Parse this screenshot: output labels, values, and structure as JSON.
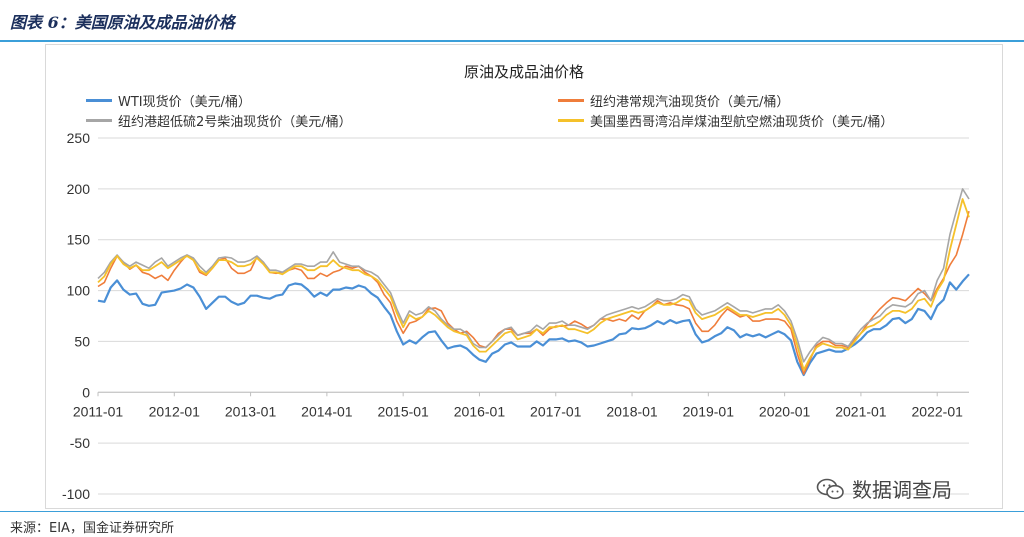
{
  "figure_title": "图表 6：美国原油及成品油价格",
  "source": "来源：EIA，国金证券研究所",
  "watermark": "数据调查局",
  "colors": {
    "wti": "#4a8fd6",
    "gasoline": "#ef7d3b",
    "diesel": "#a6a6a6",
    "jet": "#f5c12a",
    "rule": "#3b9fd9"
  },
  "chart_data": {
    "type": "line",
    "title": "原油及成品油价格",
    "xlabel": "",
    "ylabel": "",
    "ylim": [
      -100,
      250
    ],
    "xlim": [
      "2011-01",
      "2022-06"
    ],
    "yticks": [
      250,
      200,
      150,
      100,
      50,
      0,
      -50,
      -100
    ],
    "xticks": [
      "2011-01",
      "2012-01",
      "2013-01",
      "2014-01",
      "2015-01",
      "2016-01",
      "2017-01",
      "2018-01",
      "2019-01",
      "2020-01",
      "2021-01",
      "2022-01"
    ],
    "grid": true,
    "legend_position": "top",
    "x": [
      "2011-01",
      "2011-02",
      "2011-03",
      "2011-04",
      "2011-05",
      "2011-06",
      "2011-07",
      "2011-08",
      "2011-09",
      "2011-10",
      "2011-11",
      "2011-12",
      "2012-01",
      "2012-02",
      "2012-03",
      "2012-04",
      "2012-05",
      "2012-06",
      "2012-07",
      "2012-08",
      "2012-09",
      "2012-10",
      "2012-11",
      "2012-12",
      "2013-01",
      "2013-02",
      "2013-03",
      "2013-04",
      "2013-05",
      "2013-06",
      "2013-07",
      "2013-08",
      "2013-09",
      "2013-10",
      "2013-11",
      "2013-12",
      "2014-01",
      "2014-02",
      "2014-03",
      "2014-04",
      "2014-05",
      "2014-06",
      "2014-07",
      "2014-08",
      "2014-09",
      "2014-10",
      "2014-11",
      "2014-12",
      "2015-01",
      "2015-02",
      "2015-03",
      "2015-04",
      "2015-05",
      "2015-06",
      "2015-07",
      "2015-08",
      "2015-09",
      "2015-10",
      "2015-11",
      "2015-12",
      "2016-01",
      "2016-02",
      "2016-03",
      "2016-04",
      "2016-05",
      "2016-06",
      "2016-07",
      "2016-08",
      "2016-09",
      "2016-10",
      "2016-11",
      "2016-12",
      "2017-01",
      "2017-02",
      "2017-03",
      "2017-04",
      "2017-05",
      "2017-06",
      "2017-07",
      "2017-08",
      "2017-09",
      "2017-10",
      "2017-11",
      "2017-12",
      "2018-01",
      "2018-02",
      "2018-03",
      "2018-04",
      "2018-05",
      "2018-06",
      "2018-07",
      "2018-08",
      "2018-09",
      "2018-10",
      "2018-11",
      "2018-12",
      "2019-01",
      "2019-02",
      "2019-03",
      "2019-04",
      "2019-05",
      "2019-06",
      "2019-07",
      "2019-08",
      "2019-09",
      "2019-10",
      "2019-11",
      "2019-12",
      "2020-01",
      "2020-02",
      "2020-03",
      "2020-04",
      "2020-05",
      "2020-06",
      "2020-07",
      "2020-08",
      "2020-09",
      "2020-10",
      "2020-11",
      "2020-12",
      "2021-01",
      "2021-02",
      "2021-03",
      "2021-04",
      "2021-05",
      "2021-06",
      "2021-07",
      "2021-08",
      "2021-09",
      "2021-10",
      "2021-11",
      "2021-12",
      "2022-01",
      "2022-02",
      "2022-03",
      "2022-04",
      "2022-05",
      "2022-06"
    ],
    "series": [
      {
        "key": "wti",
        "name": "WTI现货价（美元/桶）",
        "values": [
          90,
          89,
          103,
          110,
          101,
          96,
          97,
          87,
          85,
          86,
          98,
          99,
          100,
          102,
          106,
          103,
          94,
          82,
          88,
          94,
          94,
          89,
          86,
          88,
          95,
          95,
          93,
          92,
          95,
          96,
          105,
          107,
          106,
          101,
          94,
          98,
          95,
          101,
          101,
          103,
          102,
          105,
          103,
          97,
          93,
          84,
          76,
          60,
          47,
          51,
          48,
          54,
          59,
          60,
          51,
          43,
          45,
          46,
          43,
          37,
          32,
          30,
          38,
          41,
          47,
          49,
          45,
          45,
          45,
          50,
          46,
          52,
          52,
          53,
          50,
          51,
          49,
          45,
          46,
          48,
          50,
          52,
          57,
          58,
          63,
          62,
          63,
          66,
          70,
          67,
          71,
          68,
          70,
          71,
          57,
          49,
          51,
          55,
          58,
          64,
          61,
          54,
          57,
          55,
          57,
          54,
          57,
          60,
          57,
          51,
          30,
          17,
          29,
          38,
          40,
          42,
          40,
          40,
          43,
          47,
          52,
          59,
          62,
          62,
          66,
          72,
          73,
          68,
          72,
          82,
          80,
          72,
          85,
          91,
          108,
          101,
          109,
          116
        ]
      },
      {
        "key": "gasoline",
        "name": "纽约港常规汽油现货价（美元/桶）",
        "values": [
          104,
          108,
          122,
          134,
          128,
          121,
          125,
          118,
          116,
          112,
          115,
          110,
          120,
          128,
          135,
          130,
          118,
          115,
          122,
          130,
          132,
          122,
          117,
          117,
          120,
          133,
          128,
          118,
          117,
          118,
          120,
          122,
          120,
          112,
          112,
          117,
          114,
          118,
          120,
          124,
          122,
          124,
          118,
          114,
          108,
          96,
          88,
          70,
          58,
          68,
          70,
          74,
          82,
          83,
          80,
          68,
          62,
          58,
          60,
          54,
          46,
          44,
          50,
          58,
          62,
          62,
          56,
          58,
          58,
          62,
          56,
          62,
          65,
          65,
          66,
          70,
          67,
          63,
          66,
          72,
          72,
          70,
          72,
          70,
          76,
          72,
          80,
          84,
          90,
          86,
          88,
          86,
          85,
          82,
          68,
          60,
          60,
          66,
          75,
          82,
          78,
          74,
          76,
          70,
          70,
          72,
          72,
          72,
          70,
          62,
          38,
          18,
          32,
          46,
          50,
          50,
          46,
          46,
          44,
          52,
          58,
          67,
          75,
          82,
          88,
          93,
          92,
          90,
          96,
          102,
          97,
          90,
          102,
          112,
          125,
          135,
          155,
          178
        ]
      },
      {
        "key": "diesel",
        "name": "纽约港超低硫2号柴油现货价（美元/桶）",
        "values": [
          112,
          118,
          128,
          135,
          128,
          124,
          128,
          125,
          122,
          128,
          132,
          124,
          128,
          132,
          135,
          132,
          124,
          118,
          124,
          132,
          133,
          132,
          128,
          128,
          130,
          134,
          128,
          120,
          120,
          118,
          122,
          126,
          126,
          124,
          124,
          128,
          128,
          138,
          128,
          126,
          124,
          124,
          120,
          118,
          114,
          106,
          98,
          82,
          68,
          80,
          76,
          78,
          84,
          80,
          72,
          66,
          62,
          62,
          58,
          48,
          44,
          44,
          50,
          56,
          62,
          64,
          56,
          58,
          60,
          66,
          62,
          68,
          68,
          70,
          66,
          66,
          64,
          62,
          66,
          72,
          76,
          78,
          80,
          82,
          84,
          82,
          84,
          88,
          92,
          90,
          90,
          92,
          96,
          94,
          82,
          76,
          78,
          80,
          84,
          88,
          84,
          80,
          80,
          78,
          80,
          82,
          82,
          86,
          80,
          70,
          52,
          30,
          40,
          48,
          54,
          52,
          48,
          48,
          45,
          54,
          62,
          68,
          72,
          75,
          82,
          86,
          85,
          84,
          88,
          97,
          100,
          90,
          110,
          122,
          155,
          178,
          200,
          190
        ]
      },
      {
        "key": "jet",
        "name": "美国墨西哥湾沿岸煤油型航空燃油现货价（美元/桶）",
        "values": [
          108,
          114,
          126,
          134,
          126,
          122,
          125,
          120,
          120,
          124,
          128,
          122,
          126,
          130,
          134,
          130,
          120,
          116,
          122,
          130,
          130,
          128,
          124,
          124,
          126,
          132,
          126,
          118,
          118,
          116,
          120,
          124,
          124,
          120,
          120,
          124,
          124,
          130,
          124,
          122,
          120,
          120,
          116,
          114,
          110,
          102,
          94,
          78,
          64,
          76,
          72,
          74,
          80,
          76,
          70,
          64,
          60,
          58,
          56,
          46,
          40,
          40,
          46,
          52,
          58,
          60,
          52,
          54,
          56,
          62,
          58,
          64,
          64,
          66,
          62,
          62,
          60,
          58,
          62,
          68,
          72,
          74,
          76,
          78,
          80,
          78,
          80,
          84,
          88,
          86,
          86,
          88,
          92,
          90,
          78,
          72,
          74,
          76,
          80,
          84,
          80,
          76,
          76,
          74,
          76,
          78,
          78,
          82,
          76,
          66,
          46,
          22,
          34,
          44,
          48,
          46,
          44,
          44,
          42,
          50,
          58,
          64,
          66,
          70,
          76,
          80,
          80,
          78,
          82,
          90,
          92,
          84,
          100,
          110,
          140,
          165,
          190,
          172
        ]
      }
    ]
  },
  "legend": [
    {
      "key": "wti",
      "label": "WTI现货价（美元/桶）"
    },
    {
      "key": "gasoline",
      "label": "纽约港常规汽油现货价（美元/桶）"
    },
    {
      "key": "diesel",
      "label": "纽约港超低硫2号柴油现货价（美元/桶）"
    },
    {
      "key": "jet",
      "label": "美国墨西哥湾沿岸煤油型航空燃油现货价（美元/桶）"
    }
  ]
}
